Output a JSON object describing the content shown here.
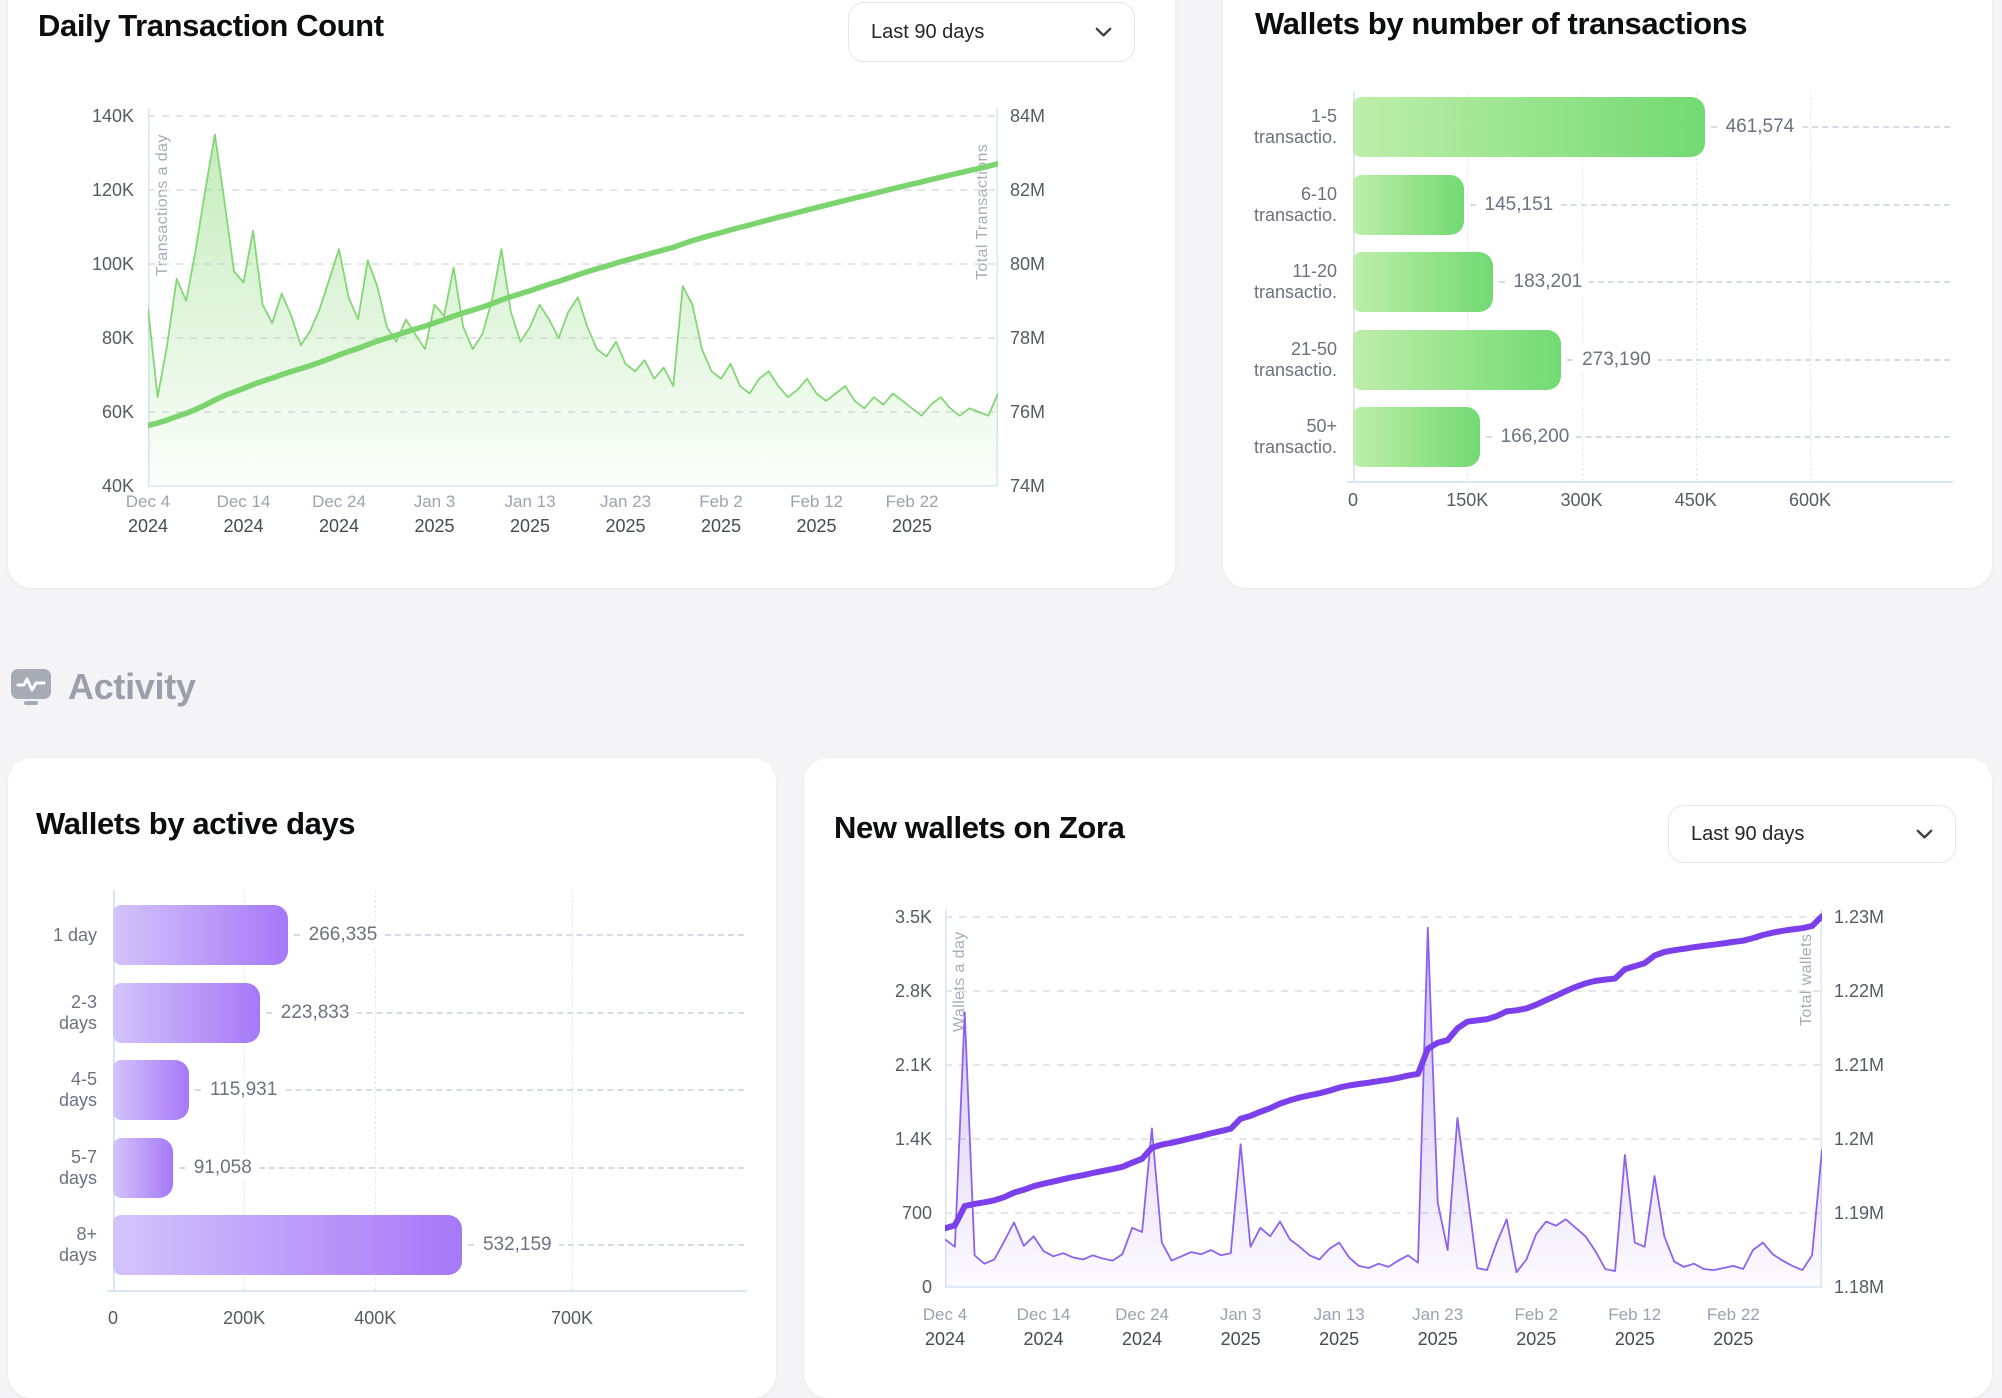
{
  "section": {
    "label": "Activity"
  },
  "colors": {
    "green_line": "#84d677",
    "green_total": "#7cd46e",
    "green_fill": "#8ad979",
    "green_bar_from": "#bfeeaa",
    "green_bar_to": "#72da72",
    "purple_line": "#8d62ef",
    "purple_total": "#7b40ec",
    "purple_fill": "#9a74f0",
    "purple_bar_from": "#d3c4fb",
    "purple_bar_to": "#a678f7"
  },
  "chart_data": [
    {
      "id": "daily_tx",
      "type": "area+line",
      "title": "Daily Transaction Count",
      "dropdown": "Last 90 days",
      "y_left": {
        "label": "Transactions a day",
        "ticks": [
          "140K",
          "120K",
          "100K",
          "80K",
          "60K",
          "40K"
        ],
        "min": 40,
        "max": 140,
        "unit": "K"
      },
      "y_right": {
        "label": "Total Transactions",
        "ticks": [
          "84M",
          "82M",
          "80M",
          "78M",
          "76M",
          "74M"
        ],
        "min": 74,
        "max": 84,
        "unit": "M"
      },
      "x_ticks": [
        [
          "Dec 4",
          "2024"
        ],
        [
          "Dec 14",
          "2024"
        ],
        [
          "Dec 24",
          "2024"
        ],
        [
          "Jan 3",
          "2025"
        ],
        [
          "Jan 13",
          "2025"
        ],
        [
          "Jan 23",
          "2025"
        ],
        [
          "Feb 2",
          "2025"
        ],
        [
          "Feb 12",
          "2025"
        ],
        [
          "Feb 22",
          "2025"
        ]
      ],
      "series": [
        {
          "name": "daily_transactions",
          "unit": "K",
          "values": [
            88,
            64,
            78,
            96,
            90,
            104,
            120,
            135,
            117,
            98,
            95,
            109,
            89,
            84,
            92,
            86,
            78,
            82,
            88,
            96,
            104,
            91,
            85,
            101,
            94,
            83,
            79,
            85,
            81,
            77,
            89,
            86,
            99,
            83,
            77,
            81,
            90,
            104,
            87,
            79,
            83,
            89,
            85,
            80,
            87,
            91,
            83,
            77,
            75,
            79,
            73,
            71,
            74,
            69,
            72,
            67,
            94,
            89,
            77,
            71,
            69,
            73,
            67,
            65,
            69,
            71,
            67,
            64,
            66,
            69,
            65,
            63,
            65,
            67,
            63,
            61,
            64,
            62,
            65,
            63,
            61,
            59,
            62,
            64,
            61,
            59,
            61,
            60,
            59,
            65
          ]
        },
        {
          "name": "total_transactions",
          "unit": "M",
          "start": 75.55,
          "per_unit": 0.001,
          "derived": "cumulative_sum_of_daily"
        }
      ]
    },
    {
      "id": "wallets_by_tx",
      "type": "bar",
      "title": "Wallets by number of transactions",
      "categories": [
        [
          "1-5",
          "transactio."
        ],
        [
          "6-10",
          "transactio."
        ],
        [
          "11-20",
          "transactio."
        ],
        [
          "21-50",
          "transactio."
        ],
        [
          "50+",
          "transactio."
        ]
      ],
      "values": [
        461574,
        145151,
        183201,
        273190,
        166200
      ],
      "value_labels": [
        "461,574",
        "145,151",
        "183,201",
        "273,190",
        "166,200"
      ],
      "x_ticks": [
        "0",
        "150K",
        "300K",
        "450K",
        "600K"
      ],
      "tick_values": [
        0,
        150000,
        300000,
        450000,
        600000
      ],
      "x_max": 600000
    },
    {
      "id": "wallets_by_active_days",
      "type": "bar",
      "title": "Wallets by active days",
      "categories": [
        [
          "1 day"
        ],
        [
          "2-3",
          "days"
        ],
        [
          "4-5",
          "days"
        ],
        [
          "5-7",
          "days"
        ],
        [
          "8+",
          "days"
        ]
      ],
      "values": [
        266335,
        223833,
        115931,
        91058,
        532159
      ],
      "value_labels": [
        "266,335",
        "223,833",
        "115,931",
        "91,058",
        "532,159"
      ],
      "x_ticks": [
        "0",
        "200K",
        "400K",
        "700K"
      ],
      "tick_values": [
        0,
        200000,
        400000,
        700000
      ],
      "x_max": 700000
    },
    {
      "id": "new_wallets",
      "type": "area+line",
      "title": "New wallets on Zora",
      "dropdown": "Last 90 days",
      "y_left": {
        "label": "Wallets a day",
        "ticks": [
          "3.5K",
          "2.8K",
          "2.1K",
          "1.4K",
          "700",
          "0"
        ],
        "min": 0,
        "max": 3500,
        "unit": ""
      },
      "y_right": {
        "label": "Total wallets",
        "ticks": [
          "1.23M",
          "1.22M",
          "1.21M",
          "1.2M",
          "1.19M",
          "1.18M"
        ],
        "min": 1.18,
        "max": 1.23,
        "unit": "M"
      },
      "x_ticks": [
        [
          "Dec 4",
          "2024"
        ],
        [
          "Dec 14",
          "2024"
        ],
        [
          "Dec 24",
          "2024"
        ],
        [
          "Jan 3",
          "2025"
        ],
        [
          "Jan 13",
          "2025"
        ],
        [
          "Jan 23",
          "2025"
        ],
        [
          "Feb 2",
          "2025"
        ],
        [
          "Feb 12",
          "2025"
        ],
        [
          "Feb 22",
          "2025"
        ]
      ],
      "series": [
        {
          "name": "new_wallets_daily",
          "unit": "",
          "values": [
            450,
            380,
            2600,
            300,
            220,
            260,
            430,
            610,
            390,
            480,
            340,
            290,
            320,
            280,
            260,
            300,
            270,
            250,
            310,
            560,
            520,
            1500,
            420,
            250,
            290,
            330,
            310,
            350,
            300,
            320,
            1350,
            380,
            560,
            480,
            620,
            450,
            380,
            300,
            260,
            360,
            420,
            280,
            200,
            180,
            220,
            190,
            250,
            300,
            230,
            3400,
            800,
            350,
            1600,
            900,
            180,
            160,
            420,
            640,
            140,
            260,
            500,
            620,
            580,
            640,
            560,
            480,
            340,
            170,
            150,
            1250,
            420,
            380,
            1050,
            480,
            240,
            190,
            220,
            170,
            160,
            180,
            200,
            170,
            350,
            420,
            310,
            250,
            200,
            160,
            300,
            1300
          ]
        },
        {
          "name": "total_wallets",
          "unit": "M",
          "start": 1.1875,
          "per_unit": 1e-06,
          "derived": "cumulative_sum_of_daily"
        }
      ]
    }
  ]
}
